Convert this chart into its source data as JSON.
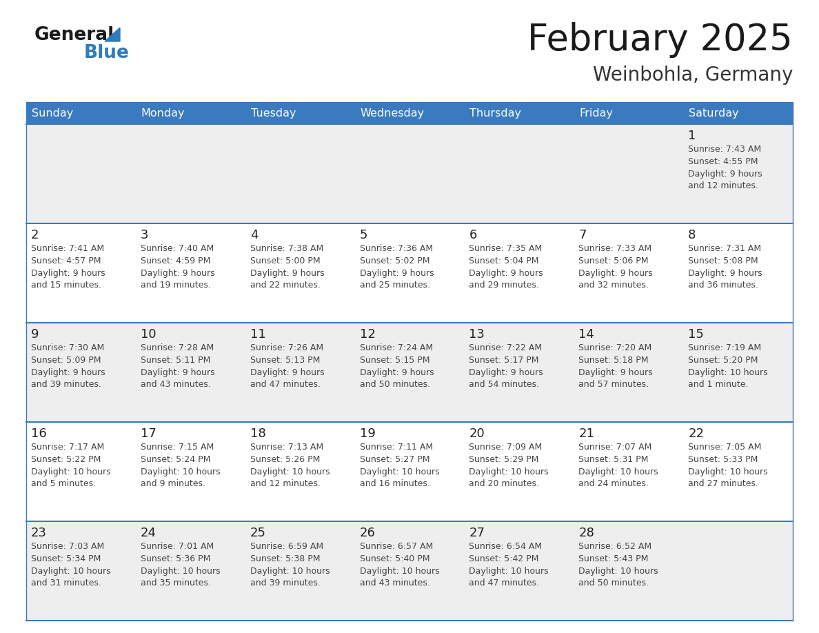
{
  "title": "February 2025",
  "subtitle": "Weinbohla, Germany",
  "header_bg_color": "#3a7abf",
  "header_text_color": "#ffffff",
  "cell_bg_white": "#ffffff",
  "cell_bg_gray": "#eeeeee",
  "border_color": "#3a7abf",
  "day_headers": [
    "Sunday",
    "Monday",
    "Tuesday",
    "Wednesday",
    "Thursday",
    "Friday",
    "Saturday"
  ],
  "title_color": "#1a1a1a",
  "subtitle_color": "#333333",
  "day_num_color": "#222222",
  "info_color": "#444444",
  "logo_black": "#1a1a1a",
  "logo_blue": "#2e7bbf",
  "logo_triangle": "#2e7bbf",
  "calendar_data": [
    [
      null,
      null,
      null,
      null,
      null,
      null,
      {
        "day": "1",
        "sunrise": "7:43 AM",
        "sunset": "4:55 PM",
        "daylight": "9 hours\nand 12 minutes."
      }
    ],
    [
      {
        "day": "2",
        "sunrise": "7:41 AM",
        "sunset": "4:57 PM",
        "daylight": "9 hours\nand 15 minutes."
      },
      {
        "day": "3",
        "sunrise": "7:40 AM",
        "sunset": "4:59 PM",
        "daylight": "9 hours\nand 19 minutes."
      },
      {
        "day": "4",
        "sunrise": "7:38 AM",
        "sunset": "5:00 PM",
        "daylight": "9 hours\nand 22 minutes."
      },
      {
        "day": "5",
        "sunrise": "7:36 AM",
        "sunset": "5:02 PM",
        "daylight": "9 hours\nand 25 minutes."
      },
      {
        "day": "6",
        "sunrise": "7:35 AM",
        "sunset": "5:04 PM",
        "daylight": "9 hours\nand 29 minutes."
      },
      {
        "day": "7",
        "sunrise": "7:33 AM",
        "sunset": "5:06 PM",
        "daylight": "9 hours\nand 32 minutes."
      },
      {
        "day": "8",
        "sunrise": "7:31 AM",
        "sunset": "5:08 PM",
        "daylight": "9 hours\nand 36 minutes."
      }
    ],
    [
      {
        "day": "9",
        "sunrise": "7:30 AM",
        "sunset": "5:09 PM",
        "daylight": "9 hours\nand 39 minutes."
      },
      {
        "day": "10",
        "sunrise": "7:28 AM",
        "sunset": "5:11 PM",
        "daylight": "9 hours\nand 43 minutes."
      },
      {
        "day": "11",
        "sunrise": "7:26 AM",
        "sunset": "5:13 PM",
        "daylight": "9 hours\nand 47 minutes."
      },
      {
        "day": "12",
        "sunrise": "7:24 AM",
        "sunset": "5:15 PM",
        "daylight": "9 hours\nand 50 minutes."
      },
      {
        "day": "13",
        "sunrise": "7:22 AM",
        "sunset": "5:17 PM",
        "daylight": "9 hours\nand 54 minutes."
      },
      {
        "day": "14",
        "sunrise": "7:20 AM",
        "sunset": "5:18 PM",
        "daylight": "9 hours\nand 57 minutes."
      },
      {
        "day": "15",
        "sunrise": "7:19 AM",
        "sunset": "5:20 PM",
        "daylight": "10 hours\nand 1 minute."
      }
    ],
    [
      {
        "day": "16",
        "sunrise": "7:17 AM",
        "sunset": "5:22 PM",
        "daylight": "10 hours\nand 5 minutes."
      },
      {
        "day": "17",
        "sunrise": "7:15 AM",
        "sunset": "5:24 PM",
        "daylight": "10 hours\nand 9 minutes."
      },
      {
        "day": "18",
        "sunrise": "7:13 AM",
        "sunset": "5:26 PM",
        "daylight": "10 hours\nand 12 minutes."
      },
      {
        "day": "19",
        "sunrise": "7:11 AM",
        "sunset": "5:27 PM",
        "daylight": "10 hours\nand 16 minutes."
      },
      {
        "day": "20",
        "sunrise": "7:09 AM",
        "sunset": "5:29 PM",
        "daylight": "10 hours\nand 20 minutes."
      },
      {
        "day": "21",
        "sunrise": "7:07 AM",
        "sunset": "5:31 PM",
        "daylight": "10 hours\nand 24 minutes."
      },
      {
        "day": "22",
        "sunrise": "7:05 AM",
        "sunset": "5:33 PM",
        "daylight": "10 hours\nand 27 minutes."
      }
    ],
    [
      {
        "day": "23",
        "sunrise": "7:03 AM",
        "sunset": "5:34 PM",
        "daylight": "10 hours\nand 31 minutes."
      },
      {
        "day": "24",
        "sunrise": "7:01 AM",
        "sunset": "5:36 PM",
        "daylight": "10 hours\nand 35 minutes."
      },
      {
        "day": "25",
        "sunrise": "6:59 AM",
        "sunset": "5:38 PM",
        "daylight": "10 hours\nand 39 minutes."
      },
      {
        "day": "26",
        "sunrise": "6:57 AM",
        "sunset": "5:40 PM",
        "daylight": "10 hours\nand 43 minutes."
      },
      {
        "day": "27",
        "sunrise": "6:54 AM",
        "sunset": "5:42 PM",
        "daylight": "10 hours\nand 47 minutes."
      },
      {
        "day": "28",
        "sunrise": "6:52 AM",
        "sunset": "5:43 PM",
        "daylight": "10 hours\nand 50 minutes."
      },
      null
    ]
  ]
}
